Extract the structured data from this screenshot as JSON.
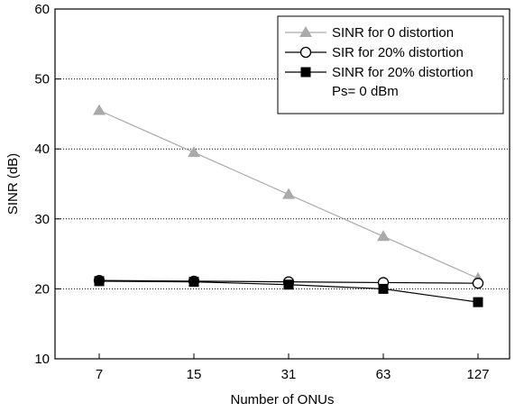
{
  "chart_data": {
    "type": "line",
    "title": "",
    "xlabel": "Number of ONUs",
    "ylabel": "SINR (dB)",
    "x": [
      "7",
      "15",
      "31",
      "63",
      "127"
    ],
    "ylim": [
      10,
      60
    ],
    "yticks": [
      10,
      20,
      30,
      40,
      50,
      60
    ],
    "grid": "horizontal dotted",
    "legend_position": "top-right",
    "series": [
      {
        "name": "SINR for 0 distortion",
        "marker": "triangle",
        "color": "#aaaaaa",
        "values": [
          45.5,
          39.5,
          33.5,
          27.5,
          21.5
        ]
      },
      {
        "name": "SIR for 20% distortion",
        "marker": "open-circle",
        "color": "#000000",
        "values": [
          21.2,
          21.1,
          21.0,
          20.9,
          20.8
        ]
      },
      {
        "name": "SINR for 20% distortion",
        "marker": "filled-square",
        "color": "#000000",
        "values": [
          21.1,
          21.0,
          20.6,
          20.0,
          18.1
        ]
      }
    ],
    "annotation": "Ps= 0 dBm"
  }
}
